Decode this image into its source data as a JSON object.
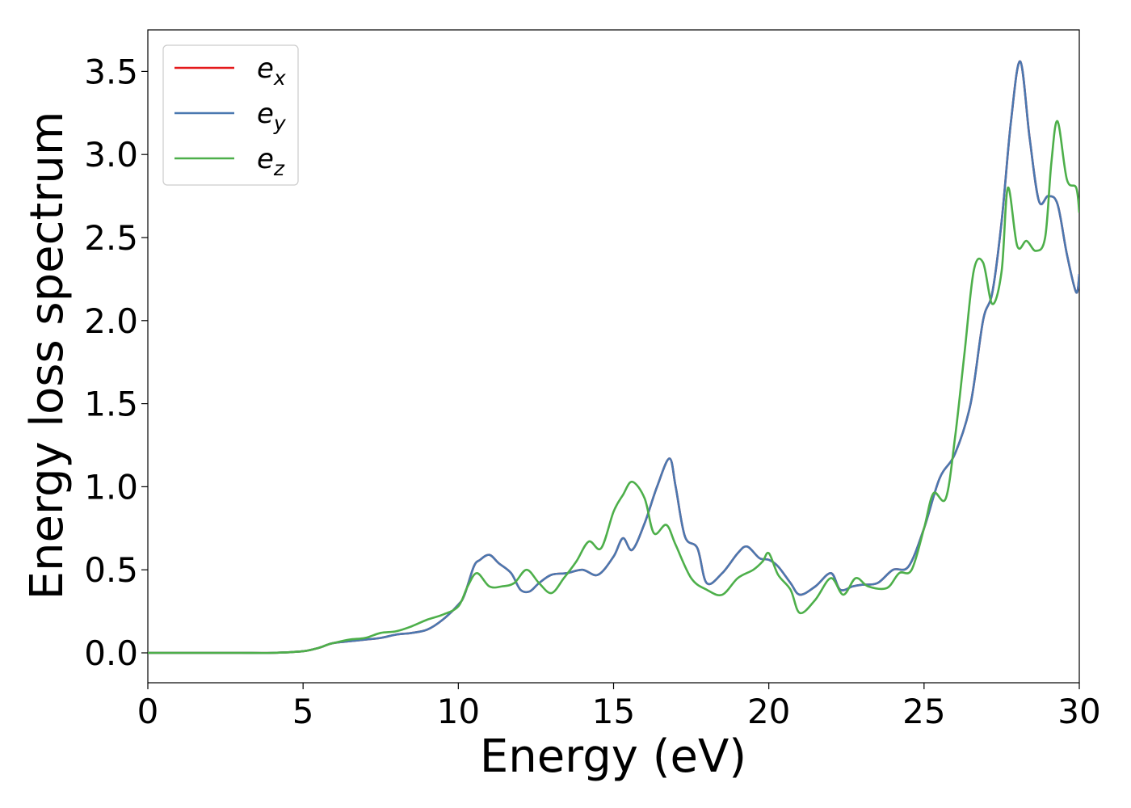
{
  "chart_data": {
    "type": "line",
    "xlabel": "Energy (eV)",
    "ylabel": "Energy loss spectrum",
    "xlim": [
      0,
      30
    ],
    "ylim": [
      -0.18,
      3.75
    ],
    "xticks": [
      0,
      5,
      10,
      15,
      20,
      25,
      30
    ],
    "xtick_labels": [
      "0",
      "5",
      "10",
      "15",
      "20",
      "25",
      "30"
    ],
    "yticks": [
      0.0,
      0.5,
      1.0,
      1.5,
      2.0,
      2.5,
      3.0,
      3.5
    ],
    "ytick_labels": [
      "0.0",
      "0.5",
      "1.0",
      "1.5",
      "2.0",
      "2.5",
      "3.0",
      "3.5"
    ],
    "grid": false,
    "legend_position": "top-left",
    "series": [
      {
        "name": "e_x",
        "legend_base": "e",
        "legend_sub": "x",
        "color": "#e41a1c",
        "x": [
          0,
          1,
          2,
          3,
          4,
          5,
          5.5,
          5.8,
          6,
          6.5,
          7,
          7.5,
          8,
          8.5,
          9,
          9.5,
          10,
          10.2,
          10.5,
          10.7,
          11,
          11.3,
          11.7,
          12,
          12.3,
          12.6,
          13,
          13.5,
          14,
          14.5,
          15,
          15.3,
          15.6,
          16,
          16.4,
          16.8,
          17,
          17.3,
          17.7,
          18,
          18.5,
          19,
          19.3,
          19.7,
          20,
          20.3,
          20.7,
          21,
          21.5,
          22,
          22.3,
          22.7,
          23,
          23.5,
          24,
          24.5,
          25,
          25.5,
          26,
          26.5,
          26.9,
          27.2,
          27.5,
          27.8,
          28.1,
          28.4,
          28.7,
          29,
          29.3,
          29.6,
          29.9,
          30
        ],
        "values": [
          0,
          0,
          0,
          0,
          0,
          0.01,
          0.03,
          0.05,
          0.06,
          0.07,
          0.08,
          0.09,
          0.11,
          0.12,
          0.14,
          0.2,
          0.29,
          0.35,
          0.52,
          0.56,
          0.59,
          0.54,
          0.48,
          0.38,
          0.37,
          0.42,
          0.47,
          0.48,
          0.5,
          0.47,
          0.58,
          0.69,
          0.62,
          0.78,
          1.0,
          1.17,
          1.0,
          0.7,
          0.63,
          0.42,
          0.48,
          0.6,
          0.64,
          0.57,
          0.56,
          0.52,
          0.42,
          0.35,
          0.4,
          0.48,
          0.38,
          0.4,
          0.41,
          0.42,
          0.5,
          0.52,
          0.75,
          1.05,
          1.2,
          1.5,
          2.0,
          2.17,
          2.6,
          3.2,
          3.56,
          3.1,
          2.72,
          2.75,
          2.7,
          2.4,
          2.17,
          2.28
        ]
      },
      {
        "name": "e_y",
        "legend_base": "e",
        "legend_sub": "y",
        "color": "#4a78b0",
        "x": [
          0,
          1,
          2,
          3,
          4,
          5,
          5.5,
          5.8,
          6,
          6.5,
          7,
          7.5,
          8,
          8.5,
          9,
          9.5,
          10,
          10.2,
          10.5,
          10.7,
          11,
          11.3,
          11.7,
          12,
          12.3,
          12.6,
          13,
          13.5,
          14,
          14.5,
          15,
          15.3,
          15.6,
          16,
          16.4,
          16.8,
          17,
          17.3,
          17.7,
          18,
          18.5,
          19,
          19.3,
          19.7,
          20,
          20.3,
          20.7,
          21,
          21.5,
          22,
          22.3,
          22.7,
          23,
          23.5,
          24,
          24.5,
          25,
          25.5,
          26,
          26.5,
          26.9,
          27.2,
          27.5,
          27.8,
          28.1,
          28.4,
          28.7,
          29,
          29.3,
          29.6,
          29.9,
          30
        ],
        "values": [
          0,
          0,
          0,
          0,
          0,
          0.01,
          0.03,
          0.05,
          0.06,
          0.07,
          0.08,
          0.09,
          0.11,
          0.12,
          0.14,
          0.2,
          0.29,
          0.35,
          0.52,
          0.56,
          0.59,
          0.54,
          0.48,
          0.38,
          0.37,
          0.42,
          0.47,
          0.48,
          0.5,
          0.47,
          0.58,
          0.69,
          0.62,
          0.78,
          1.0,
          1.17,
          1.0,
          0.7,
          0.63,
          0.42,
          0.48,
          0.6,
          0.64,
          0.57,
          0.56,
          0.52,
          0.42,
          0.35,
          0.4,
          0.48,
          0.38,
          0.4,
          0.41,
          0.42,
          0.5,
          0.52,
          0.75,
          1.05,
          1.2,
          1.5,
          2.0,
          2.17,
          2.6,
          3.2,
          3.56,
          3.1,
          2.72,
          2.75,
          2.7,
          2.4,
          2.17,
          2.28
        ]
      },
      {
        "name": "e_z",
        "legend_base": "e",
        "legend_sub": "z",
        "color": "#4daf4a",
        "x": [
          0,
          1,
          2,
          3,
          4,
          5,
          5.5,
          5.8,
          6,
          6.5,
          7,
          7.5,
          8,
          8.5,
          9,
          9.5,
          10,
          10.3,
          10.6,
          11,
          11.4,
          11.8,
          12.2,
          12.6,
          13,
          13.4,
          13.8,
          14.2,
          14.6,
          15,
          15.3,
          15.6,
          16,
          16.3,
          16.7,
          17,
          17.5,
          18,
          18.5,
          19,
          19.5,
          19.8,
          20,
          20.3,
          20.7,
          21,
          21.5,
          22,
          22.4,
          22.8,
          23.2,
          23.8,
          24.2,
          24.6,
          25,
          25.3,
          25.7,
          26,
          26.3,
          26.6,
          26.9,
          27.2,
          27.5,
          27.7,
          28,
          28.3,
          28.6,
          28.9,
          29.1,
          29.3,
          29.6,
          29.9,
          30
        ],
        "values": [
          0,
          0,
          0,
          0,
          0,
          0.01,
          0.03,
          0.05,
          0.06,
          0.08,
          0.09,
          0.12,
          0.13,
          0.16,
          0.2,
          0.23,
          0.28,
          0.4,
          0.48,
          0.4,
          0.4,
          0.42,
          0.5,
          0.42,
          0.36,
          0.45,
          0.55,
          0.67,
          0.63,
          0.85,
          0.95,
          1.03,
          0.93,
          0.72,
          0.77,
          0.65,
          0.45,
          0.38,
          0.35,
          0.45,
          0.5,
          0.55,
          0.6,
          0.47,
          0.38,
          0.24,
          0.32,
          0.45,
          0.35,
          0.45,
          0.4,
          0.39,
          0.48,
          0.5,
          0.75,
          0.96,
          0.93,
          1.3,
          1.8,
          2.3,
          2.35,
          2.1,
          2.3,
          2.8,
          2.45,
          2.48,
          2.42,
          2.5,
          2.95,
          3.2,
          2.85,
          2.8,
          2.65
        ]
      }
    ]
  }
}
